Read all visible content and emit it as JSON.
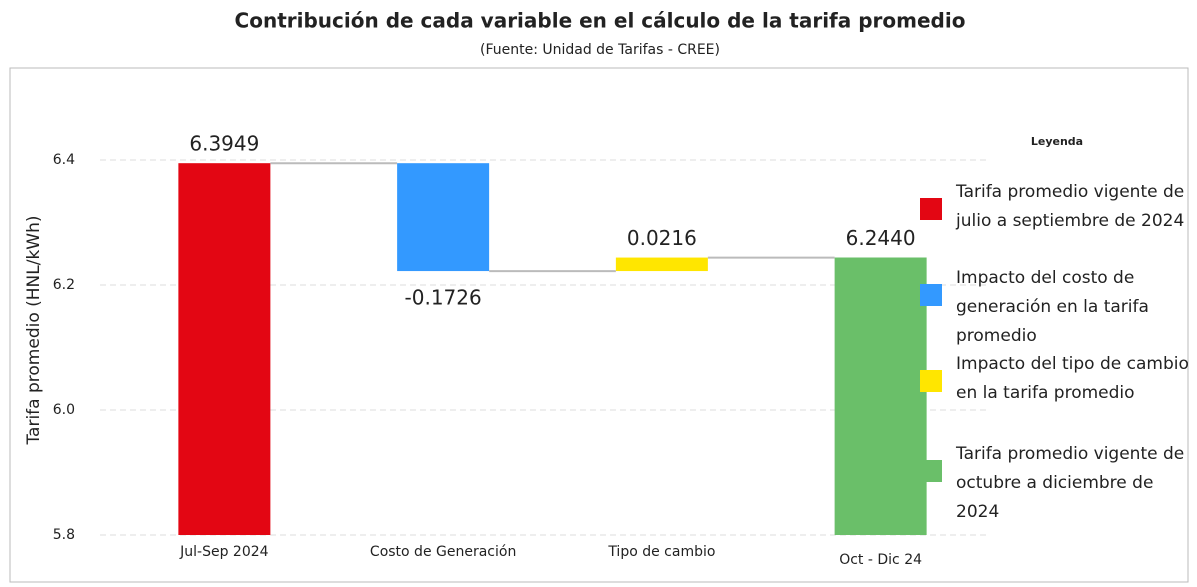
{
  "chart_data": {
    "type": "waterfall",
    "title": "Contribución de cada variable en el cálculo de la tarifa promedio",
    "subtitle": "(Fuente: Unidad de Tarifas - CREE)",
    "y_label": "Tarifa promedio (HNL/kWh)",
    "categories": [
      "Jul-Sep 2024",
      "Costo de Generación",
      "Tipo de cambio",
      "Oct - Dic 24"
    ],
    "values": [
      6.3949,
      -0.1726,
      0.0216,
      6.244
    ],
    "value_labels": [
      "6.3949",
      "-0.1726",
      "0.0216",
      "6.2440"
    ],
    "measure": [
      "absolute",
      "relative",
      "relative",
      "total"
    ],
    "colors": [
      "#e30613",
      "#3399ff",
      "#ffe600",
      "#6abf69"
    ],
    "ylim": [
      5.8,
      6.5
    ],
    "yticks": [
      5.8,
      {
        "value": 6,
        "label": "6.0"
      },
      6.2,
      6.4
    ],
    "grid": true,
    "legend": {
      "position": "right",
      "title": "Leyenda",
      "labels": [
        "Tarifa promedio vigente de julio a septiembre de 2024",
        "Impacto del costo de generación en la tarifa promedio",
        "Impacto del tipo de cambio en la tarifa promedio",
        "Tarifa promedio vigente de octubre a diciembre de 2024"
      ]
    }
  }
}
